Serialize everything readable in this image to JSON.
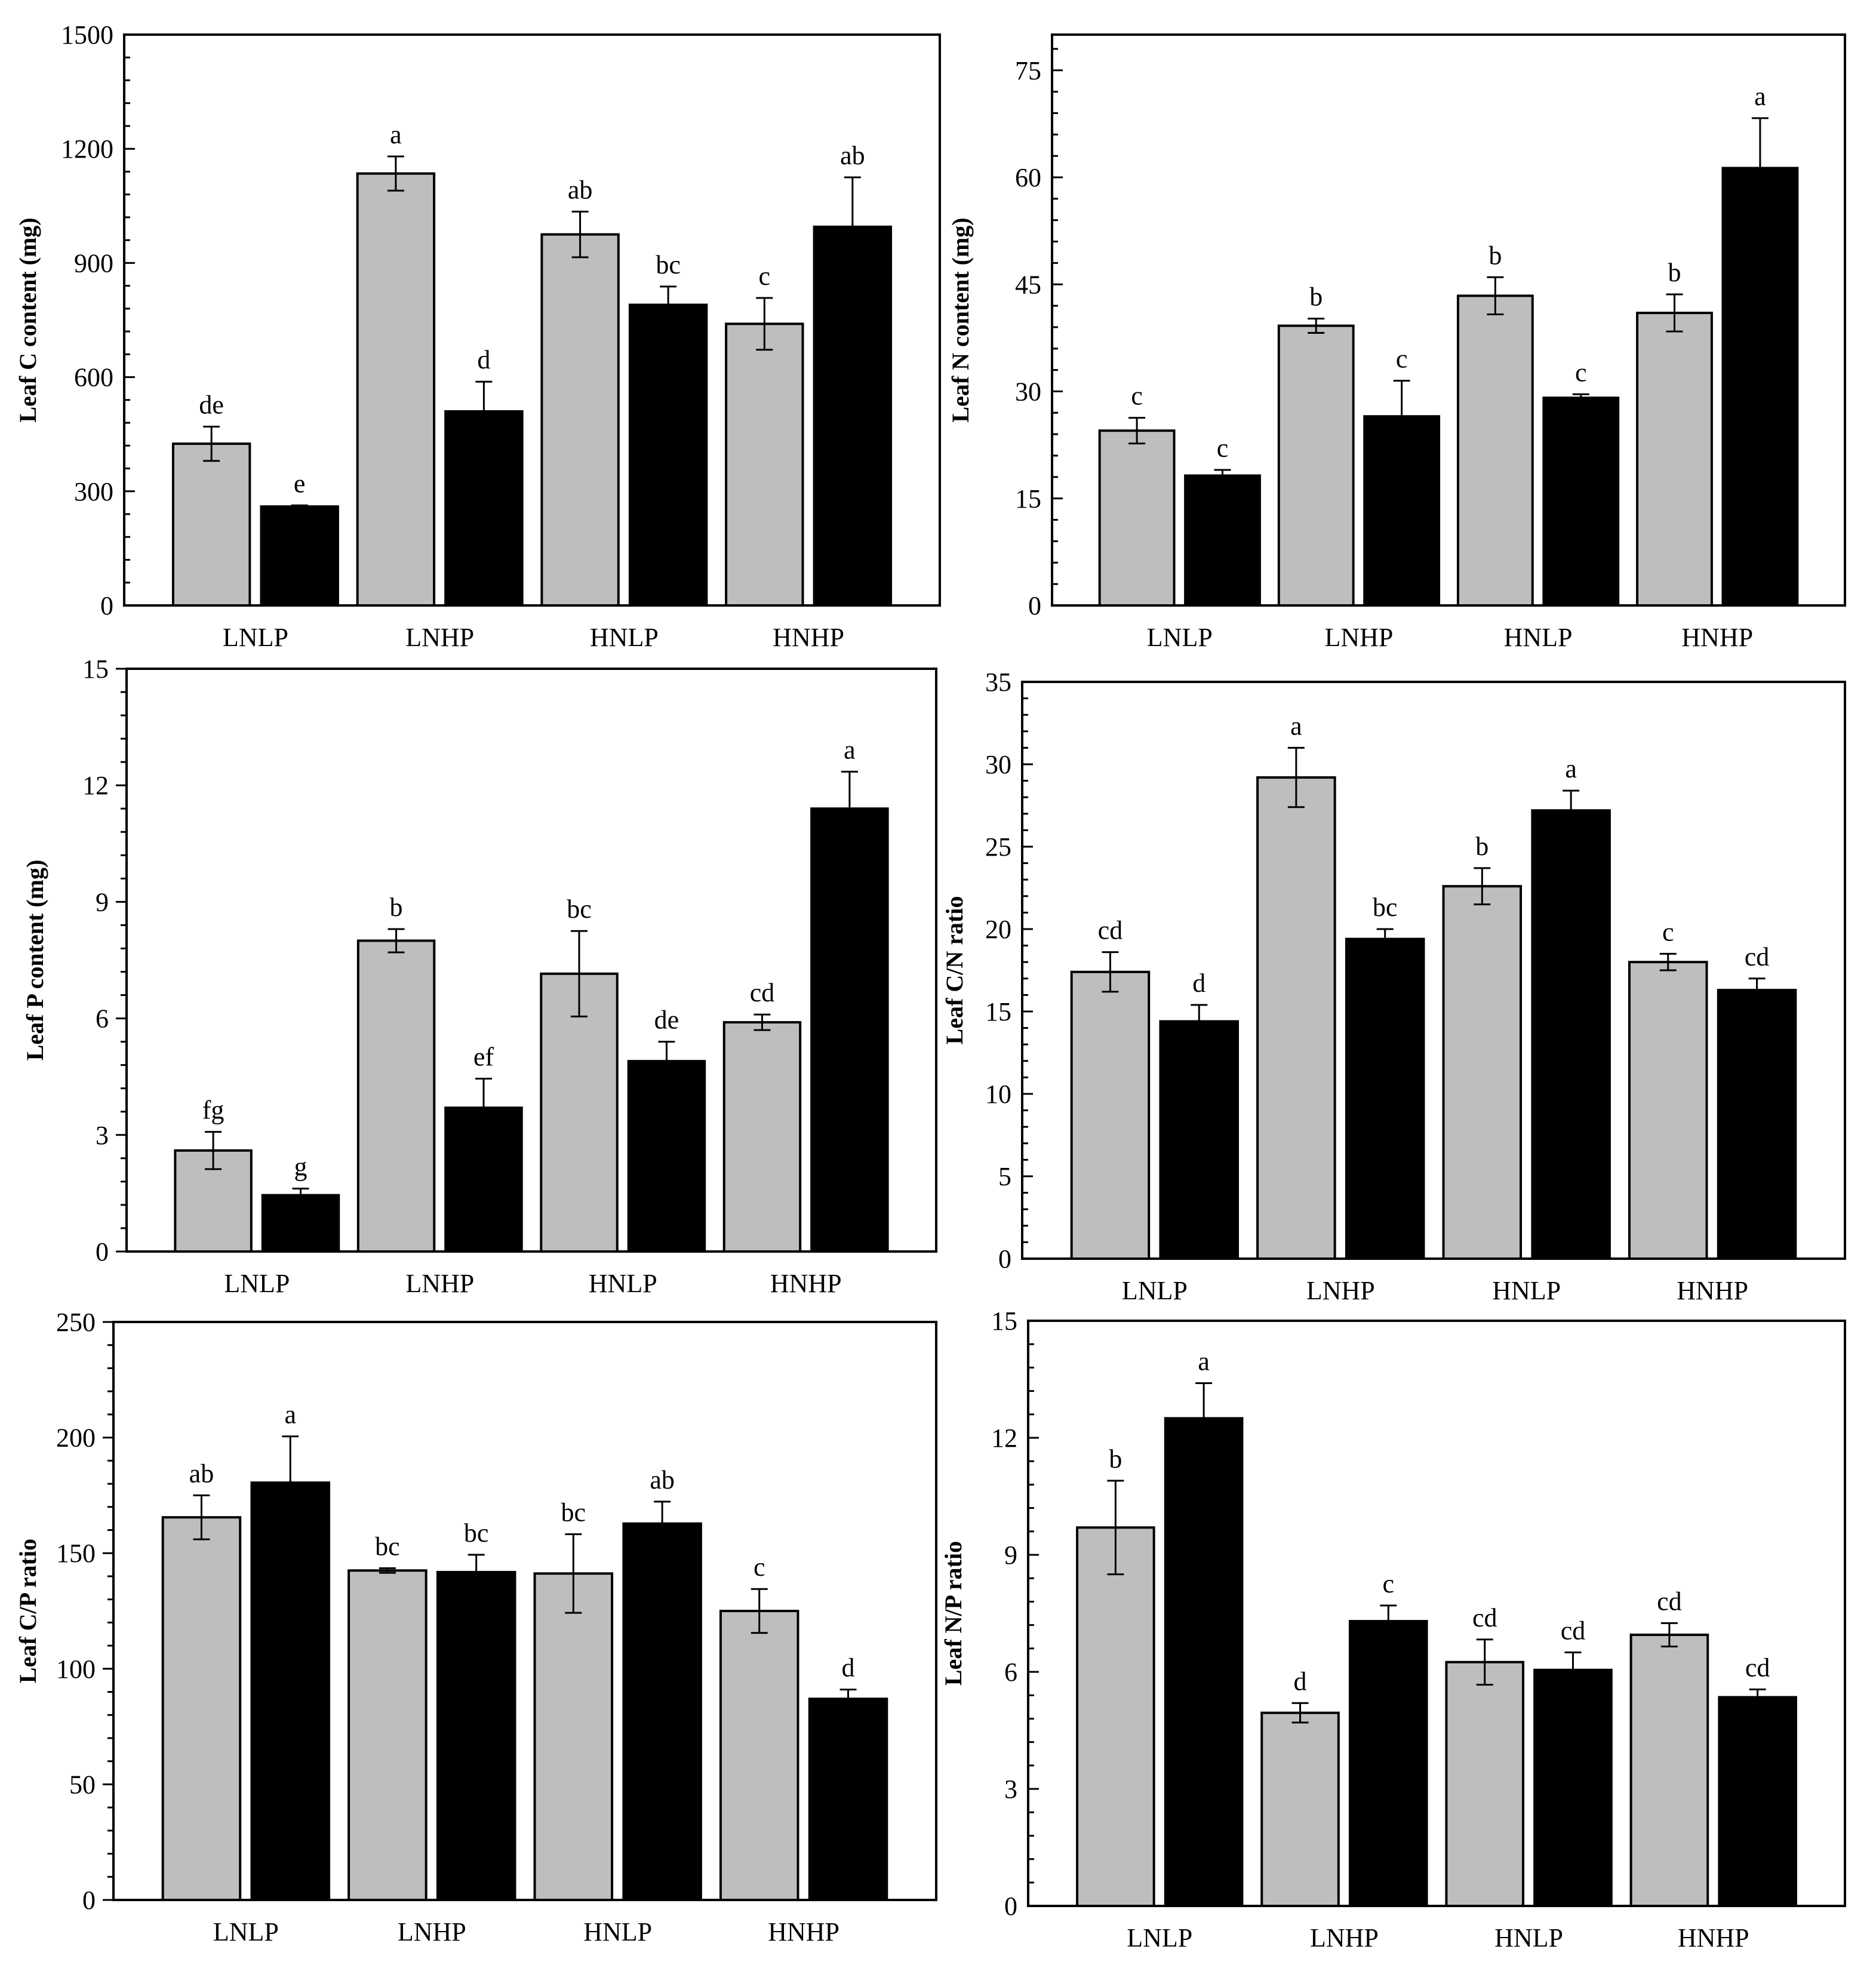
{
  "colors": {
    "gray": "#bebebe",
    "black": "#000000",
    "frame": "#000000"
  },
  "chart_data": [
    {
      "type": "bar",
      "ylabel": "Leaf C content  (mg)",
      "ylim": [
        0,
        1500
      ],
      "yticks": [
        0,
        300,
        600,
        900,
        1200,
        1500
      ],
      "categories": [
        "LNLP",
        "LNHP",
        "HNLP",
        "HNHP"
      ],
      "series": [
        {
          "name": "gray",
          "values": [
            425,
            1135,
            975,
            740
          ],
          "errors": [
            45,
            45,
            60,
            68
          ],
          "letters": [
            "de",
            "a",
            "ab",
            "c"
          ]
        },
        {
          "name": "black",
          "values": [
            260,
            510,
            790,
            995
          ],
          "errors": [
            3,
            78,
            48,
            130
          ],
          "letters": [
            "e",
            "d",
            "bc",
            "ab"
          ]
        }
      ]
    },
    {
      "type": "bar",
      "ylabel": "Leaf N content  (mg)",
      "ylim": [
        0,
        80
      ],
      "yticks": [
        0,
        15,
        30,
        45,
        60,
        75
      ],
      "categories": [
        "LNLP",
        "LNHP",
        "HNLP",
        "HNHP"
      ],
      "series": [
        {
          "name": "gray",
          "values": [
            24.5,
            39.2,
            43.4,
            41.0
          ],
          "errors": [
            1.8,
            1.0,
            2.6,
            2.6
          ],
          "letters": [
            "c",
            "b",
            "b",
            "b"
          ]
        },
        {
          "name": "black",
          "values": [
            18.2,
            26.5,
            29.1,
            61.3
          ],
          "errors": [
            0.8,
            5.0,
            0.5,
            7.0
          ],
          "letters": [
            "c",
            "c",
            "c",
            "a"
          ]
        }
      ]
    },
    {
      "type": "bar",
      "ylabel": "Leaf P content  (mg)",
      "ylim": [
        0,
        15
      ],
      "yticks": [
        0,
        3,
        6,
        9,
        12,
        15
      ],
      "categories": [
        "LNLP",
        "LNHP",
        "HNLP",
        "HNHP"
      ],
      "series": [
        {
          "name": "gray",
          "values": [
            2.6,
            8.0,
            7.15,
            5.9
          ],
          "errors": [
            0.48,
            0.3,
            1.1,
            0.2
          ],
          "letters": [
            "fg",
            "b",
            "bc",
            "cd"
          ]
        },
        {
          "name": "black",
          "values": [
            1.45,
            3.7,
            4.9,
            11.4
          ],
          "errors": [
            0.17,
            0.75,
            0.5,
            0.95
          ],
          "letters": [
            "g",
            "ef",
            "de",
            "a"
          ]
        }
      ]
    },
    {
      "type": "bar",
      "ylabel": "Leaf  C/N ratio",
      "ylim": [
        0,
        35
      ],
      "yticks": [
        0,
        5,
        10,
        15,
        20,
        25,
        30,
        35
      ],
      "categories": [
        "LNLP",
        "LNHP",
        "HNLP",
        "HNHP"
      ],
      "series": [
        {
          "name": "gray",
          "values": [
            17.4,
            29.2,
            22.6,
            18.0
          ],
          "errors": [
            1.2,
            1.8,
            1.1,
            0.5
          ],
          "letters": [
            "cd",
            "a",
            "b",
            "c"
          ]
        },
        {
          "name": "black",
          "values": [
            14.4,
            19.4,
            27.2,
            16.3
          ],
          "errors": [
            1.0,
            0.6,
            1.2,
            0.7
          ],
          "letters": [
            "d",
            "bc",
            "a",
            "cd"
          ]
        }
      ]
    },
    {
      "type": "bar",
      "ylabel": "Leaf  C/P ratio",
      "ylim": [
        0,
        250
      ],
      "yticks": [
        0,
        50,
        100,
        150,
        200,
        250
      ],
      "categories": [
        "LNLP",
        "LNHP",
        "HNLP",
        "HNHP"
      ],
      "series": [
        {
          "name": "gray",
          "values": [
            165.5,
            142.5,
            141.2,
            125.0
          ],
          "errors": [
            9.5,
            1.0,
            17.0,
            9.5
          ],
          "letters": [
            "ab",
            "bc",
            "bc",
            "c"
          ]
        },
        {
          "name": "black",
          "values": [
            180.5,
            141.8,
            162.8,
            87.0
          ],
          "errors": [
            20.0,
            7.5,
            9.5,
            4.0
          ],
          "letters": [
            "a",
            "bc",
            "ab",
            "d"
          ]
        }
      ]
    },
    {
      "type": "bar",
      "ylabel": "Leaf  N/P ratio",
      "ylim": [
        0,
        15
      ],
      "yticks": [
        0,
        3,
        6,
        9,
        12,
        15
      ],
      "categories": [
        "LNLP",
        "LNHP",
        "HNLP",
        "HNHP"
      ],
      "series": [
        {
          "name": "gray",
          "values": [
            9.7,
            4.95,
            6.25,
            6.95
          ],
          "errors": [
            1.2,
            0.25,
            0.58,
            0.3
          ],
          "letters": [
            "b",
            "d",
            "cd",
            "cd"
          ]
        },
        {
          "name": "black",
          "values": [
            12.5,
            7.3,
            6.05,
            5.35
          ],
          "errors": [
            0.9,
            0.4,
            0.45,
            0.2
          ],
          "letters": [
            "a",
            "c",
            "cd",
            "cd"
          ]
        }
      ]
    }
  ]
}
